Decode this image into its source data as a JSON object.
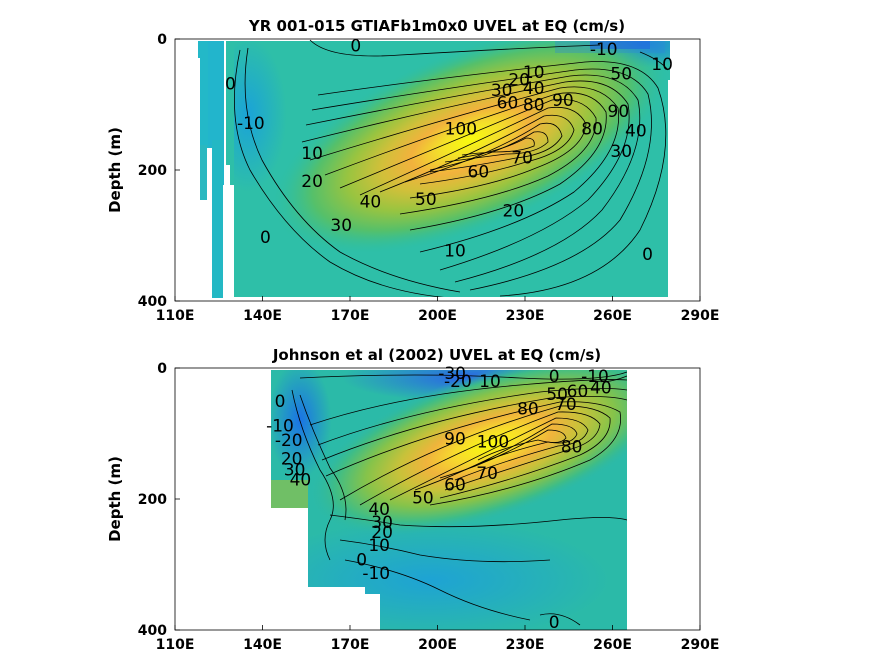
{
  "chart_data": [
    {
      "type": "heatmap",
      "title": "YR 001-015 GTIAFb1m0x0 UVEL at EQ (cm/s)",
      "ylabel": "Depth (m)",
      "xlabel": "",
      "x_ticks": [
        "110E",
        "140E",
        "170E",
        "200E",
        "230E",
        "260E",
        "290E"
      ],
      "y_ticks": [
        "0",
        "200",
        "400"
      ],
      "x_range": [
        110,
        290
      ],
      "y_range": [
        0,
        400
      ],
      "y_reversed": true,
      "colormap": "parula",
      "core": {
        "lon": 225,
        "depth": 145,
        "max": 100
      },
      "contour_labels": [
        {
          "text": "0",
          "lon": 172,
          "depth": 10
        },
        {
          "text": "-10",
          "lon": 257,
          "depth": 15
        },
        {
          "text": "10",
          "lon": 277,
          "depth": 38
        },
        {
          "text": "0",
          "lon": 129,
          "depth": 68
        },
        {
          "text": "50",
          "lon": 263,
          "depth": 53
        },
        {
          "text": "10",
          "lon": 233,
          "depth": 50
        },
        {
          "text": "20",
          "lon": 228,
          "depth": 62
        },
        {
          "text": "30",
          "lon": 222,
          "depth": 78
        },
        {
          "text": "40",
          "lon": 233,
          "depth": 75
        },
        {
          "text": "60",
          "lon": 224,
          "depth": 97
        },
        {
          "text": "80",
          "lon": 233,
          "depth": 100
        },
        {
          "text": "90",
          "lon": 243,
          "depth": 93
        },
        {
          "text": "90",
          "lon": 262,
          "depth": 110
        },
        {
          "text": "-10",
          "lon": 136,
          "depth": 128
        },
        {
          "text": "100",
          "lon": 208,
          "depth": 137
        },
        {
          "text": "80",
          "lon": 253,
          "depth": 137
        },
        {
          "text": "40",
          "lon": 268,
          "depth": 140
        },
        {
          "text": "10",
          "lon": 157,
          "depth": 174
        },
        {
          "text": "70",
          "lon": 229,
          "depth": 181
        },
        {
          "text": "30",
          "lon": 263,
          "depth": 171
        },
        {
          "text": "60",
          "lon": 214,
          "depth": 202
        },
        {
          "text": "20",
          "lon": 157,
          "depth": 217
        },
        {
          "text": "40",
          "lon": 177,
          "depth": 248
        },
        {
          "text": "50",
          "lon": 196,
          "depth": 244
        },
        {
          "text": "20",
          "lon": 226,
          "depth": 262
        },
        {
          "text": "30",
          "lon": 167,
          "depth": 284
        },
        {
          "text": "0",
          "lon": 141,
          "depth": 302
        },
        {
          "text": "0",
          "lon": 272,
          "depth": 328
        },
        {
          "text": "10",
          "lon": 206,
          "depth": 323
        }
      ]
    },
    {
      "type": "heatmap",
      "title": "Johnson et al (2002) UVEL at EQ (cm/s)",
      "ylabel": "Depth (m)",
      "xlabel": "",
      "x_ticks": [
        "110E",
        "140E",
        "170E",
        "200E",
        "230E",
        "260E",
        "290E"
      ],
      "y_ticks": [
        "0",
        "200",
        "400"
      ],
      "x_range": [
        110,
        290
      ],
      "y_range": [
        0,
        400
      ],
      "y_reversed": true,
      "colormap": "parula",
      "core": {
        "lon": 222,
        "depth": 110,
        "max": 100
      },
      "contour_labels": [
        {
          "text": "-30",
          "lon": 205,
          "depth": 8
        },
        {
          "text": "-20",
          "lon": 207,
          "depth": 20
        },
        {
          "text": "10",
          "lon": 218,
          "depth": 20
        },
        {
          "text": "0",
          "lon": 240,
          "depth": 12
        },
        {
          "text": "-10",
          "lon": 254,
          "depth": 12
        },
        {
          "text": "50",
          "lon": 241,
          "depth": 40
        },
        {
          "text": "60",
          "lon": 248,
          "depth": 35
        },
        {
          "text": "40",
          "lon": 256,
          "depth": 30
        },
        {
          "text": "80",
          "lon": 231,
          "depth": 62
        },
        {
          "text": "70",
          "lon": 244,
          "depth": 55
        },
        {
          "text": "0",
          "lon": 146,
          "depth": 50
        },
        {
          "text": "-10",
          "lon": 146,
          "depth": 88
        },
        {
          "text": "-20",
          "lon": 149,
          "depth": 110
        },
        {
          "text": "90",
          "lon": 206,
          "depth": 108
        },
        {
          "text": "100",
          "lon": 219,
          "depth": 112
        },
        {
          "text": "80",
          "lon": 246,
          "depth": 120
        },
        {
          "text": "20",
          "lon": 150,
          "depth": 138
        },
        {
          "text": "30",
          "lon": 151,
          "depth": 155
        },
        {
          "text": "40",
          "lon": 153,
          "depth": 170
        },
        {
          "text": "70",
          "lon": 217,
          "depth": 160
        },
        {
          "text": "60",
          "lon": 206,
          "depth": 178
        },
        {
          "text": "50",
          "lon": 195,
          "depth": 198
        },
        {
          "text": "40",
          "lon": 180,
          "depth": 215
        },
        {
          "text": "30",
          "lon": 181,
          "depth": 235
        },
        {
          "text": "20",
          "lon": 181,
          "depth": 250
        },
        {
          "text": "10",
          "lon": 180,
          "depth": 270
        },
        {
          "text": "0",
          "lon": 174,
          "depth": 292
        },
        {
          "text": "-10",
          "lon": 179,
          "depth": 313
        },
        {
          "text": "0",
          "lon": 240,
          "depth": 388
        }
      ]
    }
  ]
}
